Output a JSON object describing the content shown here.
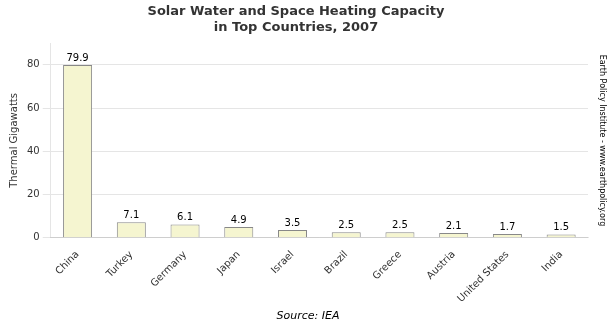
{
  "chart_data": {
    "type": "bar",
    "title": "Solar Water and Space Heating Capacity\nin Top Countries, 2007",
    "categories": [
      "China",
      "Turkey",
      "Germany",
      "Japan",
      "Israel",
      "Brazil",
      "Greece",
      "Austria",
      "United States",
      "India"
    ],
    "values": [
      79.9,
      7.1,
      6.1,
      4.9,
      3.5,
      2.5,
      2.5,
      2.1,
      1.7,
      1.5
    ],
    "color": "#f5f5d0",
    "ylabel": "Thermal Gigawatts",
    "source": "Source: IEA",
    "watermark": "Earth Policy Institute - www.earthpolicy.org",
    "ylim": [
      0,
      90
    ],
    "yticks": [
      0,
      20,
      40,
      60,
      80
    ],
    "grid": true,
    "data_labels": true
  }
}
